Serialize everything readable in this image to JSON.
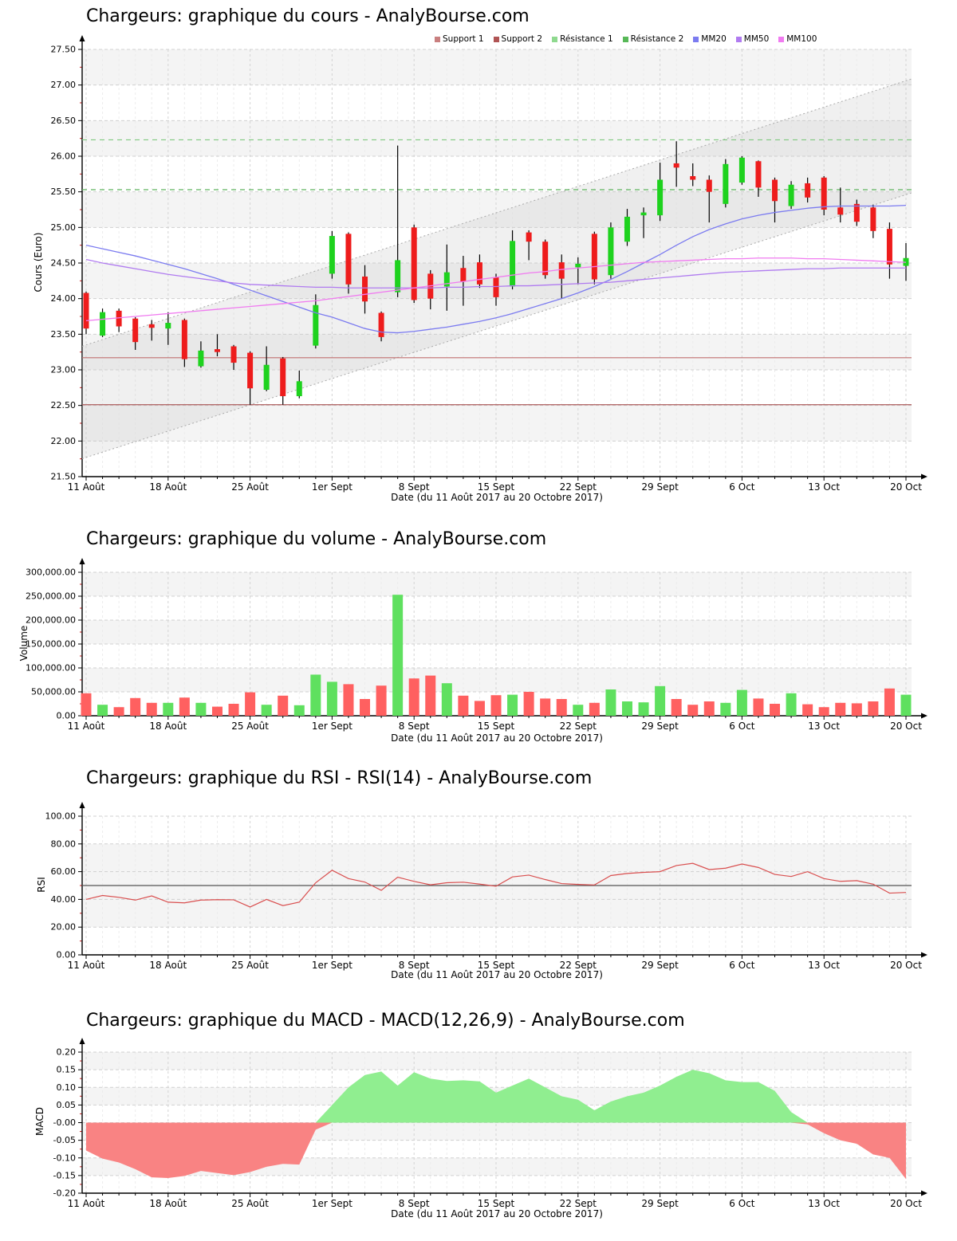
{
  "page": {
    "background": "#ffffff",
    "source_site": "AnalyBourse.com",
    "instrument": "Chargeurs"
  },
  "dates_axis": {
    "tick_labels": [
      "11 Août",
      "18 Août",
      "25 Août",
      "1er Sept",
      "8 Sept",
      "15 Sept",
      "22 Sept",
      "29 Sept",
      "6 Oct",
      "13 Oct",
      "20 Oct"
    ],
    "axis_title": "Date (du 11 Août 2017 au 20 Octobre 2017)",
    "n_days": 51,
    "tick_every": 5
  },
  "chart_data": [
    {
      "type": "candlestick",
      "title": "Chargeurs: graphique du cours - AnalyBourse.com",
      "ylabel": "Cours (Euro)",
      "ylim": [
        21.5,
        27.5
      ],
      "ystep": 0.5,
      "grid": true,
      "legend_position": "top",
      "legend": [
        {
          "label": "Support 1",
          "color": "#c97f7f"
        },
        {
          "label": "Support 2",
          "color": "#b05454"
        },
        {
          "label": "Résistance 1",
          "color": "#8fd98f"
        },
        {
          "label": "Résistance 2",
          "color": "#58b858"
        },
        {
          "label": "MM20",
          "color": "#7b7bf0"
        },
        {
          "label": "MM50",
          "color": "#b07bf0"
        },
        {
          "label": "MM100",
          "color": "#f07bf0"
        }
      ],
      "support_levels": [
        23.17,
        22.51
      ],
      "resistance_levels": [
        26.23,
        25.53
      ],
      "trend_channel": {
        "upper_start": 23.35,
        "upper_end": 27.06,
        "lower_start": 21.77,
        "lower_end": 25.46
      },
      "candles_ohlc": [
        [
          24.08,
          24.1,
          23.5,
          23.58
        ],
        [
          23.48,
          23.86,
          23.46,
          23.81
        ],
        [
          23.83,
          23.86,
          23.53,
          23.61
        ],
        [
          23.72,
          23.74,
          23.28,
          23.39
        ],
        [
          23.64,
          23.7,
          23.41,
          23.59
        ],
        [
          23.58,
          23.81,
          23.35,
          23.66
        ],
        [
          23.7,
          23.72,
          23.04,
          23.15
        ],
        [
          23.05,
          23.4,
          23.03,
          23.27
        ],
        [
          23.29,
          23.5,
          23.19,
          23.25
        ],
        [
          23.33,
          23.35,
          23.0,
          23.1
        ],
        [
          23.24,
          23.26,
          22.51,
          22.74
        ],
        [
          22.72,
          23.33,
          22.7,
          23.07
        ],
        [
          23.16,
          23.18,
          22.51,
          22.63
        ],
        [
          22.63,
          22.99,
          22.6,
          22.84
        ],
        [
          23.34,
          24.06,
          23.3,
          23.91
        ],
        [
          24.35,
          24.95,
          24.28,
          24.88
        ],
        [
          24.91,
          24.93,
          24.07,
          24.2
        ],
        [
          24.31,
          24.47,
          23.79,
          23.96
        ],
        [
          23.8,
          23.82,
          23.4,
          23.46
        ],
        [
          24.09,
          26.15,
          24.02,
          24.54
        ],
        [
          25.0,
          25.04,
          23.94,
          23.98
        ],
        [
          24.35,
          24.4,
          23.85,
          24.0
        ],
        [
          24.17,
          24.76,
          23.83,
          24.37
        ],
        [
          24.43,
          24.6,
          23.9,
          24.24
        ],
        [
          24.51,
          24.62,
          24.15,
          24.2
        ],
        [
          24.3,
          24.35,
          23.9,
          24.02
        ],
        [
          24.17,
          24.96,
          24.13,
          24.81
        ],
        [
          24.93,
          24.96,
          24.54,
          24.8
        ],
        [
          24.8,
          24.83,
          24.28,
          24.33
        ],
        [
          24.51,
          24.62,
          24.0,
          24.28
        ],
        [
          24.44,
          24.58,
          24.2,
          24.49
        ],
        [
          24.91,
          24.94,
          24.2,
          24.27
        ],
        [
          24.33,
          25.07,
          24.28,
          25.0
        ],
        [
          24.8,
          25.26,
          24.74,
          25.15
        ],
        [
          25.17,
          25.28,
          24.85,
          25.21
        ],
        [
          25.17,
          25.91,
          25.09,
          25.67
        ],
        [
          25.9,
          26.21,
          25.57,
          25.84
        ],
        [
          25.72,
          25.9,
          25.58,
          25.67
        ],
        [
          25.67,
          25.73,
          25.07,
          25.5
        ],
        [
          25.33,
          25.96,
          25.28,
          25.89
        ],
        [
          25.63,
          26.0,
          25.6,
          25.98
        ],
        [
          25.93,
          25.94,
          25.43,
          25.56
        ],
        [
          25.67,
          25.7,
          25.07,
          25.37
        ],
        [
          25.3,
          25.65,
          25.26,
          25.6
        ],
        [
          25.62,
          25.7,
          25.35,
          25.42
        ],
        [
          25.7,
          25.72,
          25.17,
          25.25
        ],
        [
          25.28,
          25.56,
          25.07,
          25.18
        ],
        [
          25.33,
          25.39,
          25.02,
          25.08
        ],
        [
          25.28,
          25.32,
          24.85,
          24.95
        ],
        [
          24.98,
          25.07,
          24.28,
          24.48
        ],
        [
          24.46,
          24.78,
          24.25,
          24.57
        ]
      ],
      "series": [
        {
          "name": "MM20",
          "color": "#7b7bf0",
          "values": [
            24.75,
            24.7,
            24.65,
            24.6,
            24.54,
            24.48,
            24.42,
            24.35,
            24.28,
            24.2,
            24.12,
            24.04,
            23.96,
            23.88,
            23.8,
            23.74,
            23.66,
            23.58,
            23.53,
            23.52,
            23.54,
            23.57,
            23.6,
            23.64,
            23.68,
            23.73,
            23.79,
            23.86,
            23.93,
            24.0,
            24.08,
            24.17,
            24.27,
            24.38,
            24.5,
            24.62,
            24.75,
            24.87,
            24.97,
            25.05,
            25.12,
            25.17,
            25.21,
            25.24,
            25.27,
            25.29,
            25.3,
            25.3,
            25.3,
            25.3,
            25.31
          ]
        },
        {
          "name": "MM50",
          "color": "#b07bf0",
          "values": [
            24.55,
            24.5,
            24.46,
            24.42,
            24.38,
            24.34,
            24.31,
            24.28,
            24.25,
            24.22,
            24.2,
            24.19,
            24.18,
            24.17,
            24.16,
            24.16,
            24.15,
            24.15,
            24.15,
            24.15,
            24.15,
            24.15,
            24.16,
            24.16,
            24.17,
            24.17,
            24.18,
            24.18,
            24.19,
            24.2,
            24.21,
            24.22,
            24.23,
            24.25,
            24.27,
            24.29,
            24.31,
            24.33,
            24.35,
            24.37,
            24.38,
            24.39,
            24.4,
            24.41,
            24.42,
            24.42,
            24.43,
            24.43,
            24.43,
            24.43,
            24.43
          ]
        },
        {
          "name": "MM100",
          "color": "#f07bf0",
          "values": [
            23.69,
            23.71,
            23.73,
            23.75,
            23.77,
            23.79,
            23.81,
            23.83,
            23.85,
            23.87,
            23.89,
            23.91,
            23.93,
            23.95,
            23.97,
            24.0,
            24.03,
            24.06,
            24.09,
            24.12,
            24.15,
            24.18,
            24.21,
            24.24,
            24.27,
            24.3,
            24.33,
            24.36,
            24.38,
            24.41,
            24.43,
            24.45,
            24.47,
            24.49,
            24.51,
            24.52,
            24.53,
            24.54,
            24.55,
            24.56,
            24.56,
            24.57,
            24.57,
            24.57,
            24.56,
            24.56,
            24.55,
            24.54,
            24.53,
            24.52,
            24.51
          ]
        }
      ],
      "colors": {
        "up": "#1ed21e",
        "down": "#ee1c1c",
        "wick": "#000000",
        "support1": "#c17070",
        "support2": "#ad5c5c",
        "resistance1": "#7fc97f",
        "resistance2": "#5fb55f",
        "channel": "#aaaaaa"
      }
    },
    {
      "type": "bar",
      "title": "Chargeurs: graphique du volume - AnalyBourse.com",
      "ylabel": "Volume",
      "ylim": [
        0,
        300000
      ],
      "ystep": 50000,
      "values": [
        47000,
        23000,
        18000,
        37000,
        27000,
        27000,
        38000,
        27000,
        19000,
        25000,
        49000,
        23000,
        42000,
        22000,
        86000,
        71000,
        66000,
        35000,
        63000,
        253000,
        78000,
        84000,
        68000,
        42000,
        31000,
        43000,
        44000,
        50000,
        36000,
        35000,
        23000,
        27000,
        55000,
        30000,
        28000,
        62000,
        35000,
        23000,
        30000,
        27000,
        54000,
        36000,
        25000,
        47000,
        24000,
        18000,
        27000,
        26000,
        30000,
        57000,
        44000
      ],
      "colors": {
        "up": "#5fe05f",
        "down": "#ff6060"
      }
    },
    {
      "type": "line",
      "title": "Chargeurs: graphique du RSI - RSI(14) - AnalyBourse.com",
      "ylabel": "RSI",
      "ylim": [
        0,
        100
      ],
      "ystep": 20,
      "midline": 50,
      "band": [
        20,
        80
      ],
      "values": [
        40,
        42.8,
        41.5,
        39.5,
        42.5,
        38,
        37.5,
        39.5,
        39.8,
        39.7,
        34.5,
        40,
        35.5,
        38,
        52,
        61,
        55,
        52.5,
        46.5,
        56,
        53,
        50.5,
        52,
        52.4,
        51,
        49.5,
        56.2,
        57.5,
        54.3,
        51.4,
        50.8,
        50.4,
        57.2,
        58.7,
        59.5,
        60,
        64.4,
        66,
        61.5,
        62.5,
        65.5,
        63,
        58,
        56.5,
        60,
        55,
        53,
        53.5,
        51,
        44.5,
        45
      ],
      "colors": {
        "line": "#d94f4f",
        "midline": "#555555"
      }
    },
    {
      "type": "area",
      "title": "Chargeurs: graphique du MACD - MACD(12,26,9) - AnalyBourse.com",
      "ylabel": "MACD",
      "ylim": [
        -0.2,
        0.2
      ],
      "ystep": 0.05,
      "values": [
        -0.079,
        -0.102,
        -0.113,
        -0.132,
        -0.155,
        -0.157,
        -0.151,
        -0.137,
        -0.143,
        -0.149,
        -0.14,
        -0.125,
        -0.117,
        -0.119,
        -0.02,
        0.05,
        0.1,
        0.135,
        0.145,
        0.105,
        0.143,
        0.125,
        0.118,
        0.12,
        0.117,
        0.085,
        0.105,
        0.125,
        0.1,
        0.075,
        0.065,
        0.035,
        0.06,
        0.075,
        0.085,
        0.105,
        0.13,
        0.15,
        0.14,
        0.12,
        0.115,
        0.115,
        0.09,
        0.03,
        -0.005,
        -0.03,
        -0.05,
        -0.06,
        -0.09,
        -0.1,
        -0.16
      ],
      "colors": {
        "positive": "#90ee90",
        "negative": "#f98383"
      }
    }
  ]
}
